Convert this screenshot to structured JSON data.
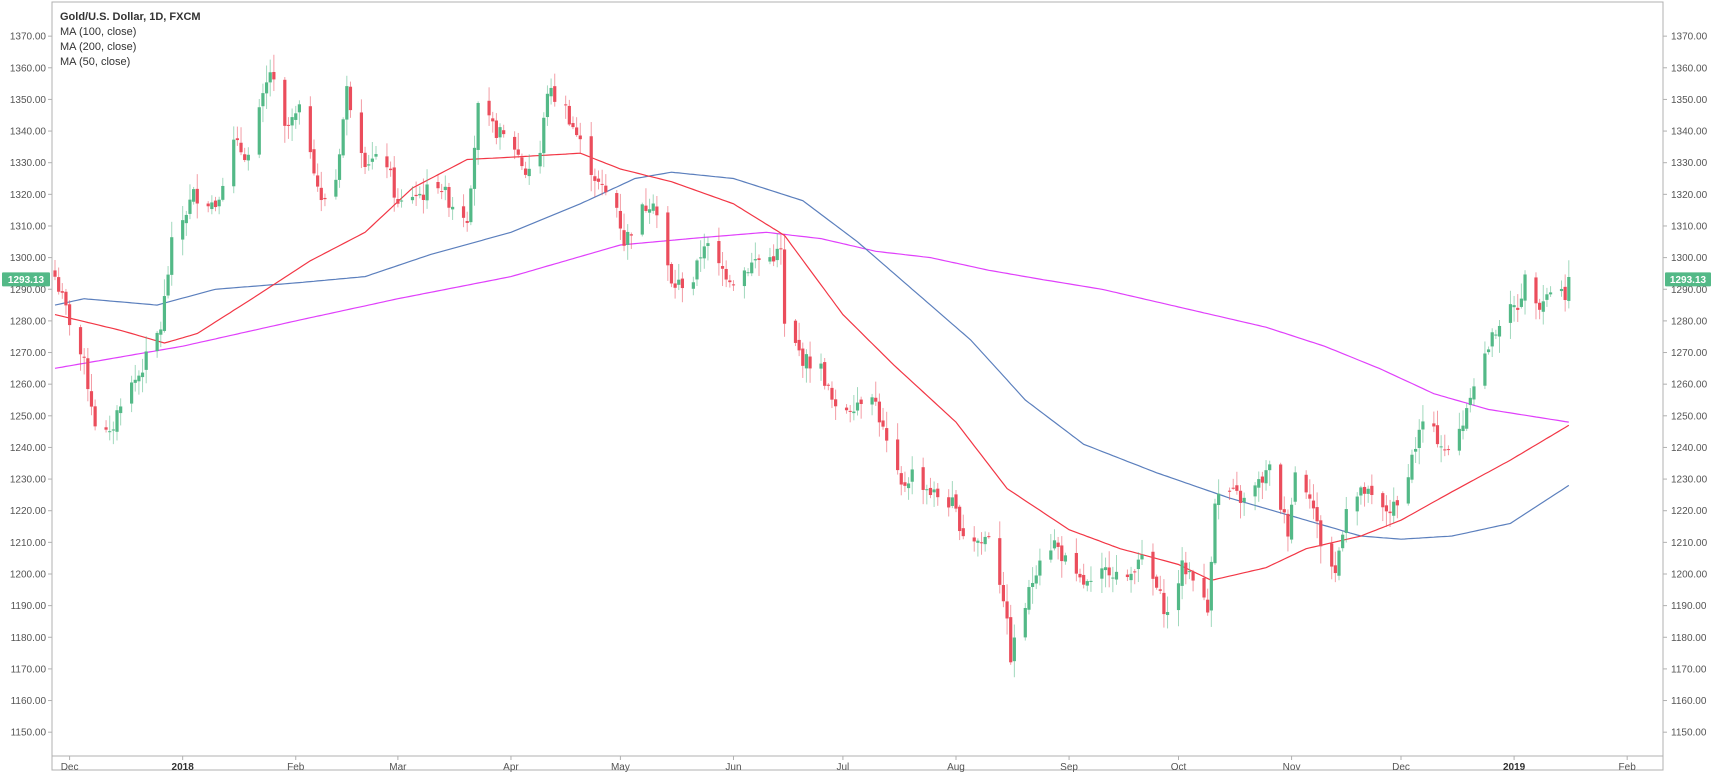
{
  "legend": {
    "title": "Gold/U.S. Dollar, 1D, FXCM",
    "ma100": "MA (100, close)",
    "ma200": "MA (200, close)",
    "ma50": "MA (50, close)"
  },
  "last_price_label": "1293.13",
  "colors": {
    "up": "#53b987",
    "down": "#eb4d5c",
    "ma50": "#f23645",
    "ma100": "#5b7fbd",
    "ma200": "#e040fb",
    "price_tag": "#53b987",
    "axis": "#555555",
    "frame": "#b0b0b0"
  },
  "chart_data": {
    "type": "candlestick",
    "symbol": "Gold/U.S. Dollar",
    "timeframe": "1D",
    "source": "FXCM",
    "ylim": [
      1145,
      1377
    ],
    "y_ticks": [
      "1150.00",
      "1160.00",
      "1170.00",
      "1180.00",
      "1190.00",
      "1200.00",
      "1210.00",
      "1220.00",
      "1230.00",
      "1240.00",
      "1250.00",
      "1260.00",
      "1270.00",
      "1280.00",
      "1290.00",
      "1300.00",
      "1310.00",
      "1320.00",
      "1330.00",
      "1340.00",
      "1350.00",
      "1360.00",
      "1370.00"
    ],
    "x_ticks": [
      {
        "label": "Dec",
        "date": "2017-12-01"
      },
      {
        "label": "2018",
        "date": "2018-01-01",
        "bold": true
      },
      {
        "label": "Feb",
        "date": "2018-02-01"
      },
      {
        "label": "Mar",
        "date": "2018-03-01"
      },
      {
        "label": "Apr",
        "date": "2018-04-01"
      },
      {
        "label": "May",
        "date": "2018-05-01"
      },
      {
        "label": "Jun",
        "date": "2018-06-01"
      },
      {
        "label": "Jul",
        "date": "2018-07-01"
      },
      {
        "label": "Aug",
        "date": "2018-08-01"
      },
      {
        "label": "Sep",
        "date": "2018-09-01"
      },
      {
        "label": "Oct",
        "date": "2018-10-01"
      },
      {
        "label": "Nov",
        "date": "2018-11-01"
      },
      {
        "label": "Dec",
        "date": "2018-12-01"
      },
      {
        "label": "2019",
        "date": "2019-01-01",
        "bold": true
      },
      {
        "label": "Feb",
        "date": "2019-02-01"
      }
    ],
    "x_range": [
      "2017-11-27",
      "2019-02-10"
    ],
    "close_anchors": [
      [
        "2017-11-27",
        1294
      ],
      [
        "2017-12-01",
        1280
      ],
      [
        "2017-12-05",
        1266
      ],
      [
        "2017-12-08",
        1248
      ],
      [
        "2017-12-12",
        1243
      ],
      [
        "2017-12-15",
        1255
      ],
      [
        "2017-12-20",
        1263
      ],
      [
        "2017-12-26",
        1278
      ],
      [
        "2017-12-29",
        1304
      ],
      [
        "2018-01-04",
        1320
      ],
      [
        "2018-01-10",
        1317
      ],
      [
        "2018-01-15",
        1336
      ],
      [
        "2018-01-19",
        1332
      ],
      [
        "2018-01-25",
        1359
      ],
      [
        "2018-01-29",
        1340
      ],
      [
        "2018-02-02",
        1346
      ],
      [
        "2018-02-05",
        1335
      ],
      [
        "2018-02-08",
        1317
      ],
      [
        "2018-02-12",
        1325
      ],
      [
        "2018-02-15",
        1353
      ],
      [
        "2018-02-20",
        1331
      ],
      [
        "2018-02-26",
        1330
      ],
      [
        "2018-03-01",
        1316
      ],
      [
        "2018-03-05",
        1320
      ],
      [
        "2018-03-08",
        1320
      ],
      [
        "2018-03-12",
        1324
      ],
      [
        "2018-03-15",
        1318
      ],
      [
        "2018-03-20",
        1313
      ],
      [
        "2018-03-23",
        1347
      ],
      [
        "2018-03-27",
        1341
      ],
      [
        "2018-04-02",
        1335
      ],
      [
        "2018-04-05",
        1327
      ],
      [
        "2018-04-09",
        1333
      ],
      [
        "2018-04-11",
        1353
      ],
      [
        "2018-04-16",
        1347
      ],
      [
        "2018-04-20",
        1336
      ],
      [
        "2018-04-25",
        1323
      ],
      [
        "2018-04-30",
        1316
      ],
      [
        "2018-05-02",
        1305
      ],
      [
        "2018-05-07",
        1315
      ],
      [
        "2018-05-10",
        1319
      ],
      [
        "2018-05-15",
        1291
      ],
      [
        "2018-05-21",
        1293
      ],
      [
        "2018-05-24",
        1305
      ],
      [
        "2018-05-28",
        1297
      ],
      [
        "2018-06-01",
        1293
      ],
      [
        "2018-06-07",
        1299
      ],
      [
        "2018-06-11",
        1300
      ],
      [
        "2018-06-14",
        1302
      ],
      [
        "2018-06-15",
        1278
      ],
      [
        "2018-06-20",
        1268
      ],
      [
        "2018-06-25",
        1265
      ],
      [
        "2018-06-29",
        1251
      ],
      [
        "2018-07-03",
        1253
      ],
      [
        "2018-07-09",
        1258
      ],
      [
        "2018-07-13",
        1241
      ],
      [
        "2018-07-17",
        1227
      ],
      [
        "2018-07-20",
        1232
      ],
      [
        "2018-07-25",
        1226
      ],
      [
        "2018-07-31",
        1222
      ],
      [
        "2018-08-03",
        1213
      ],
      [
        "2018-08-08",
        1210
      ],
      [
        "2018-08-10",
        1213
      ],
      [
        "2018-08-14",
        1193
      ],
      [
        "2018-08-16",
        1174
      ],
      [
        "2018-08-21",
        1194
      ],
      [
        "2018-08-24",
        1206
      ],
      [
        "2018-08-28",
        1210
      ],
      [
        "2018-09-03",
        1198
      ],
      [
        "2018-09-07",
        1196
      ],
      [
        "2018-09-12",
        1202
      ],
      [
        "2018-09-17",
        1197
      ],
      [
        "2018-09-20",
        1206
      ],
      [
        "2018-09-24",
        1198
      ],
      [
        "2018-09-28",
        1187
      ],
      [
        "2018-10-02",
        1202
      ],
      [
        "2018-10-05",
        1200
      ],
      [
        "2018-10-09",
        1188
      ],
      [
        "2018-10-11",
        1224
      ],
      [
        "2018-10-15",
        1226
      ],
      [
        "2018-10-19",
        1223
      ],
      [
        "2018-10-24",
        1230
      ],
      [
        "2018-10-26",
        1233
      ],
      [
        "2018-10-31",
        1214
      ],
      [
        "2018-11-02",
        1232
      ],
      [
        "2018-11-06",
        1226
      ],
      [
        "2018-11-09",
        1210
      ],
      [
        "2018-11-13",
        1200
      ],
      [
        "2018-11-16",
        1222
      ],
      [
        "2018-11-21",
        1226
      ],
      [
        "2018-11-26",
        1220
      ],
      [
        "2018-11-30",
        1221
      ],
      [
        "2018-12-04",
        1237
      ],
      [
        "2018-12-07",
        1248
      ],
      [
        "2018-12-11",
        1243
      ],
      [
        "2018-12-14",
        1238
      ],
      [
        "2018-12-18",
        1248
      ],
      [
        "2018-12-20",
        1258
      ],
      [
        "2018-12-24",
        1269
      ],
      [
        "2018-12-28",
        1280
      ],
      [
        "2019-01-02",
        1285
      ],
      [
        "2019-01-04",
        1293
      ],
      [
        "2019-01-08",
        1286
      ],
      [
        "2019-01-11",
        1290
      ],
      [
        "2019-01-15",
        1289
      ],
      [
        "2019-01-16",
        1293
      ]
    ],
    "ma50_anchors": [
      [
        "2017-11-27",
        1282
      ],
      [
        "2017-12-15",
        1277
      ],
      [
        "2017-12-27",
        1273
      ],
      [
        "2018-01-05",
        1276
      ],
      [
        "2018-01-20",
        1287
      ],
      [
        "2018-02-05",
        1299
      ],
      [
        "2018-02-20",
        1308
      ],
      [
        "2018-03-05",
        1322
      ],
      [
        "2018-03-20",
        1331
      ],
      [
        "2018-04-05",
        1332
      ],
      [
        "2018-04-20",
        1333
      ],
      [
        "2018-05-01",
        1328
      ],
      [
        "2018-05-15",
        1324
      ],
      [
        "2018-06-01",
        1317
      ],
      [
        "2018-06-15",
        1307
      ],
      [
        "2018-07-01",
        1282
      ],
      [
        "2018-07-15",
        1266
      ],
      [
        "2018-08-01",
        1248
      ],
      [
        "2018-08-15",
        1227
      ],
      [
        "2018-09-01",
        1214
      ],
      [
        "2018-09-15",
        1208
      ],
      [
        "2018-10-01",
        1203
      ],
      [
        "2018-10-10",
        1198
      ],
      [
        "2018-10-25",
        1202
      ],
      [
        "2018-11-05",
        1208
      ],
      [
        "2018-11-20",
        1212
      ],
      [
        "2018-12-01",
        1217
      ],
      [
        "2018-12-15",
        1226
      ],
      [
        "2018-12-31",
        1236
      ],
      [
        "2019-01-16",
        1247
      ]
    ],
    "ma100_anchors": [
      [
        "2017-11-27",
        1285
      ],
      [
        "2017-12-05",
        1287
      ],
      [
        "2017-12-25",
        1285
      ],
      [
        "2018-01-10",
        1290
      ],
      [
        "2018-02-01",
        1292
      ],
      [
        "2018-02-20",
        1294
      ],
      [
        "2018-03-10",
        1301
      ],
      [
        "2018-04-01",
        1308
      ],
      [
        "2018-04-20",
        1317
      ],
      [
        "2018-05-05",
        1325
      ],
      [
        "2018-05-15",
        1327
      ],
      [
        "2018-06-01",
        1325
      ],
      [
        "2018-06-20",
        1318
      ],
      [
        "2018-07-05",
        1305
      ],
      [
        "2018-07-20",
        1290
      ],
      [
        "2018-08-05",
        1274
      ],
      [
        "2018-08-20",
        1255
      ],
      [
        "2018-09-05",
        1241
      ],
      [
        "2018-09-25",
        1232
      ],
      [
        "2018-10-15",
        1224
      ],
      [
        "2018-11-05",
        1217
      ],
      [
        "2018-11-20",
        1212
      ],
      [
        "2018-12-01",
        1211
      ],
      [
        "2018-12-15",
        1212
      ],
      [
        "2018-12-31",
        1216
      ],
      [
        "2019-01-16",
        1228
      ]
    ],
    "ma200_anchors": [
      [
        "2017-11-27",
        1265
      ],
      [
        "2018-01-01",
        1272
      ],
      [
        "2018-02-01",
        1280
      ],
      [
        "2018-03-01",
        1287
      ],
      [
        "2018-04-01",
        1294
      ],
      [
        "2018-05-01",
        1304
      ],
      [
        "2018-05-20",
        1306
      ],
      [
        "2018-06-10",
        1308
      ],
      [
        "2018-06-25",
        1306
      ],
      [
        "2018-07-10",
        1302
      ],
      [
        "2018-07-25",
        1300
      ],
      [
        "2018-08-10",
        1296
      ],
      [
        "2018-08-25",
        1293
      ],
      [
        "2018-09-10",
        1290
      ],
      [
        "2018-09-25",
        1286
      ],
      [
        "2018-10-10",
        1282
      ],
      [
        "2018-10-25",
        1278
      ],
      [
        "2018-11-10",
        1272
      ],
      [
        "2018-11-25",
        1265
      ],
      [
        "2018-12-10",
        1257
      ],
      [
        "2018-12-25",
        1252
      ],
      [
        "2019-01-16",
        1248
      ]
    ],
    "grid": false,
    "legend_position": "top-left"
  }
}
